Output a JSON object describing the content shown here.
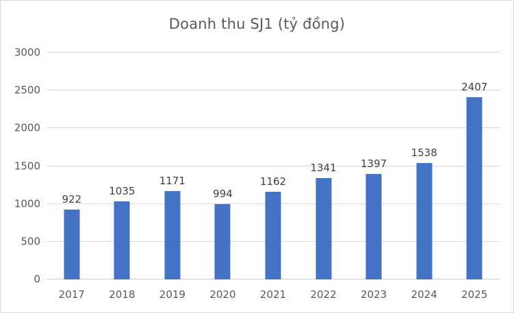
{
  "colors": {
    "bar": "#4472C4",
    "title_text": "#595959",
    "axis_text": "#595959",
    "label_text": "#404040",
    "gridline": "#D9D9D9",
    "axis_line": "#CBCBCB",
    "border": "#D9D9D9",
    "background": "#FFFFFF"
  },
  "chart_data": {
    "type": "bar",
    "title": "Doanh thu SJ1 (tỷ đồng)",
    "categories": [
      "2017",
      "2018",
      "2019",
      "2020",
      "2021",
      "2022",
      "2023",
      "2024",
      "2025"
    ],
    "values": [
      922,
      1035,
      1171,
      994,
      1162,
      1341,
      1397,
      1538,
      2407
    ],
    "xlabel": "",
    "ylabel": "",
    "ylim": [
      0,
      3000
    ],
    "yticks": [
      0,
      500,
      1000,
      1500,
      2000,
      2500,
      3000
    ],
    "grid": true,
    "legend": false,
    "data_labels": true
  }
}
